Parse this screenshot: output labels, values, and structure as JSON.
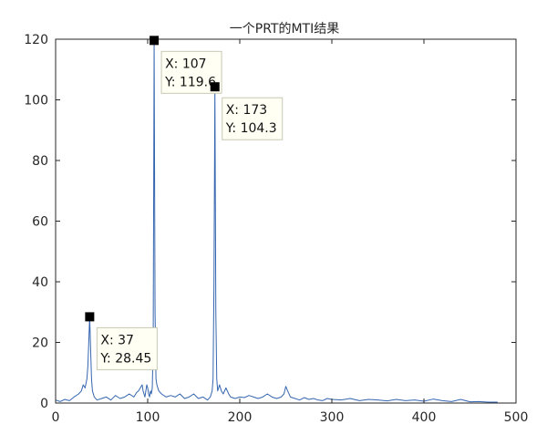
{
  "chart_data": {
    "type": "line",
    "title": "一个PRT的MTI结果",
    "xlabel": "",
    "ylabel": "",
    "xlim": [
      0,
      500
    ],
    "ylim": [
      0,
      120
    ],
    "xticks": [
      0,
      100,
      200,
      300,
      400,
      500
    ],
    "yticks": [
      0,
      20,
      40,
      60,
      80,
      100,
      120
    ],
    "xtick_labels": [
      "0",
      "100",
      "200",
      "300",
      "400",
      "500"
    ],
    "ytick_labels": [
      "0",
      "20",
      "40",
      "60",
      "80",
      "100",
      "120"
    ],
    "grid": false,
    "line_color": "#3566b0",
    "series": [
      {
        "x": [
          0,
          5,
          10,
          15,
          20,
          25,
          28,
          30,
          32,
          34,
          35,
          36,
          37,
          38,
          39,
          40,
          42,
          45,
          50,
          55,
          60,
          65,
          70,
          75,
          80,
          85,
          88,
          90,
          92,
          94,
          95,
          96,
          97,
          98,
          99,
          100,
          101,
          102,
          103,
          104,
          105,
          106,
          107,
          108,
          109,
          110,
          112,
          115,
          120,
          125,
          130,
          135,
          140,
          145,
          150,
          155,
          160,
          165,
          168,
          170,
          171,
          172,
          173,
          174,
          175,
          176,
          177,
          178,
          180,
          182,
          185,
          188,
          190,
          195,
          200,
          205,
          210,
          215,
          220,
          225,
          230,
          235,
          240,
          245,
          248,
          250,
          252,
          255,
          260,
          265,
          270,
          275,
          280,
          285,
          290,
          295,
          300,
          310,
          320,
          330,
          340,
          350,
          360,
          370,
          380,
          390,
          400,
          410,
          420,
          430,
          440,
          450,
          460,
          470,
          480
        ],
        "values": [
          1,
          0.5,
          1.2,
          0.8,
          2,
          3,
          4,
          6,
          5,
          8,
          12,
          20,
          28.45,
          18,
          8,
          4,
          2,
          1,
          1.5,
          2,
          1,
          2.5,
          1.5,
          2,
          3,
          2,
          3.5,
          4,
          5,
          6,
          4,
          3,
          2,
          4,
          6,
          5,
          3,
          2,
          4,
          3,
          5,
          20,
          119.6,
          30,
          8,
          6,
          4,
          3,
          2,
          2.5,
          2,
          3,
          1.5,
          2,
          3,
          1.5,
          2,
          1,
          2,
          4,
          8,
          40,
          104.3,
          30,
          8,
          4,
          5,
          6,
          4,
          3,
          5,
          3,
          2,
          1.5,
          2,
          1.8,
          2.5,
          2,
          1.5,
          2,
          3,
          2,
          1.5,
          2,
          3,
          5.5,
          4,
          2,
          1.5,
          1,
          1.8,
          1.2,
          1.5,
          1,
          0.8,
          1.5,
          1.2,
          1,
          1.5,
          0.8,
          1.2,
          1,
          0.7,
          1.2,
          0.8,
          1,
          0.6,
          1.3,
          0.8,
          0.5,
          1.2,
          0.4,
          0.5,
          0.3,
          0.3
        ]
      }
    ],
    "datatips": [
      {
        "point_x": 37,
        "point_y": 28.45,
        "label_x": "X: 37",
        "label_y": "Y: 28.45"
      },
      {
        "point_x": 107,
        "point_y": 119.6,
        "label_x": "X: 107",
        "label_y": "Y: 119.6"
      },
      {
        "point_x": 173,
        "point_y": 104.3,
        "label_x": "X: 173",
        "label_y": "Y: 104.3"
      }
    ]
  }
}
